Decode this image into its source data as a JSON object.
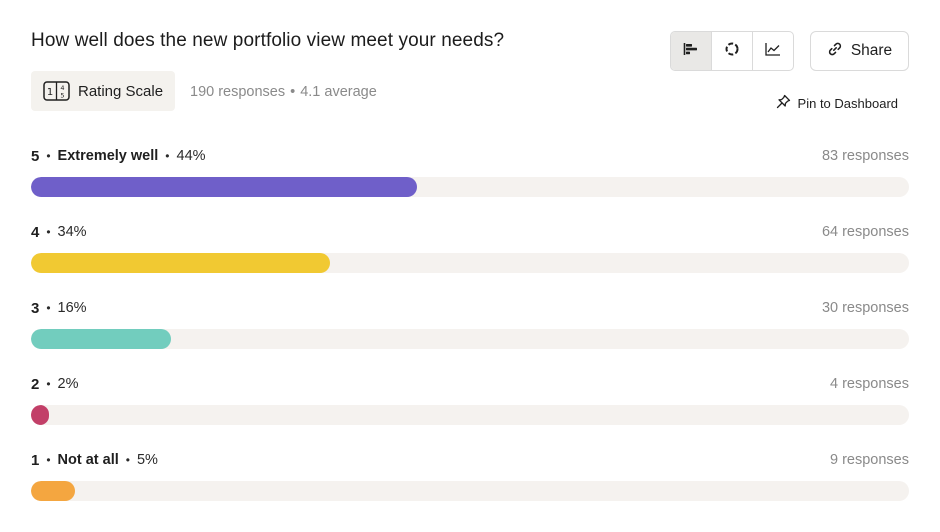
{
  "question": {
    "title": "How well does the new portfolio view meet your needs?",
    "type_label": "Rating Scale",
    "responses_text": "190 responses",
    "separator": "•",
    "average_text": "4.1 average"
  },
  "toolbar": {
    "views": [
      {
        "name": "bar-chart-view",
        "icon": "bar-chart-icon",
        "active": true
      },
      {
        "name": "donut-chart-view",
        "icon": "donut-chart-icon",
        "active": false
      },
      {
        "name": "line-chart-view",
        "icon": "line-chart-icon",
        "active": false
      }
    ],
    "share_label": "Share",
    "pin_label": "Pin to Dashboard"
  },
  "colors": {
    "track": "#f5f2ef",
    "rating_5": "#6f5fc9",
    "rating_4": "#f1c932",
    "rating_3": "#72cdbe",
    "rating_2": "#c23f68",
    "rating_1": "#f4a640"
  },
  "rows": [
    {
      "rating": "5",
      "label": "Extremely well",
      "percent": "44%",
      "fraction": 0.44,
      "count": "83 responses",
      "color": "#6f5fc9"
    },
    {
      "rating": "4",
      "label": "",
      "percent": "34%",
      "fraction": 0.34,
      "count": "64 responses",
      "color": "#f1c932"
    },
    {
      "rating": "3",
      "label": "",
      "percent": "16%",
      "fraction": 0.16,
      "count": "30 responses",
      "color": "#72cdbe"
    },
    {
      "rating": "2",
      "label": "",
      "percent": "2%",
      "fraction": 0.02,
      "count": "4 responses",
      "color": "#c23f68"
    },
    {
      "rating": "1",
      "label": "Not at all",
      "percent": "5%",
      "fraction": 0.05,
      "count": "9 responses",
      "color": "#f4a640"
    }
  ]
}
